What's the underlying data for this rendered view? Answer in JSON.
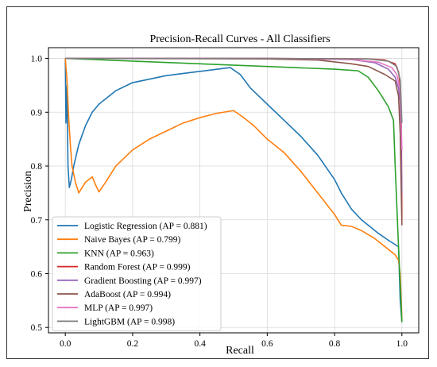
{
  "chart_data": {
    "type": "line",
    "title": "Precision-Recall Curves - All Classifiers",
    "xlabel": "Recall",
    "ylabel": "Precision",
    "xlim": [
      -0.05,
      1.05
    ],
    "ylim": [
      0.49,
      1.02
    ],
    "grid": true,
    "legend_position": "bottom-left",
    "x_ticks": [
      0.0,
      0.2,
      0.4,
      0.6,
      0.8,
      1.0
    ],
    "x_tick_labels": [
      "0.0",
      "0.2",
      "0.4",
      "0.6",
      "0.8",
      "1.0"
    ],
    "y_ticks": [
      0.5,
      0.6,
      0.7,
      0.8,
      0.9,
      1.0
    ],
    "y_tick_labels": [
      "0.5",
      "0.6",
      "0.7",
      "0.8",
      "0.9",
      "1.0"
    ],
    "series": [
      {
        "name": "Logistic Regression (AP = 0.881)",
        "color": "#1f77b4",
        "points": [
          [
            0,
            1.0
          ],
          [
            0.002,
            0.88
          ],
          [
            0.005,
            0.95
          ],
          [
            0.008,
            0.8
          ],
          [
            0.012,
            0.76
          ],
          [
            0.018,
            0.775
          ],
          [
            0.025,
            0.8
          ],
          [
            0.04,
            0.84
          ],
          [
            0.06,
            0.875
          ],
          [
            0.08,
            0.9
          ],
          [
            0.1,
            0.915
          ],
          [
            0.15,
            0.94
          ],
          [
            0.2,
            0.955
          ],
          [
            0.3,
            0.968
          ],
          [
            0.4,
            0.976
          ],
          [
            0.49,
            0.983
          ],
          [
            0.52,
            0.97
          ],
          [
            0.55,
            0.945
          ],
          [
            0.6,
            0.915
          ],
          [
            0.65,
            0.885
          ],
          [
            0.7,
            0.855
          ],
          [
            0.75,
            0.82
          ],
          [
            0.8,
            0.775
          ],
          [
            0.82,
            0.75
          ],
          [
            0.85,
            0.72
          ],
          [
            0.88,
            0.7
          ],
          [
            0.9,
            0.69
          ],
          [
            0.93,
            0.675
          ],
          [
            0.96,
            0.662
          ],
          [
            0.99,
            0.65
          ],
          [
            0.995,
            0.55
          ],
          [
            1.0,
            0.51
          ]
        ]
      },
      {
        "name": "Naive Bayes (AP = 0.799)",
        "color": "#ff7f0e",
        "points": [
          [
            0,
            1.0
          ],
          [
            0.005,
            0.96
          ],
          [
            0.01,
            0.89
          ],
          [
            0.015,
            0.84
          ],
          [
            0.02,
            0.8
          ],
          [
            0.03,
            0.77
          ],
          [
            0.04,
            0.75
          ],
          [
            0.05,
            0.76
          ],
          [
            0.06,
            0.77
          ],
          [
            0.07,
            0.775
          ],
          [
            0.08,
            0.78
          ],
          [
            0.09,
            0.765
          ],
          [
            0.1,
            0.752
          ],
          [
            0.12,
            0.77
          ],
          [
            0.15,
            0.8
          ],
          [
            0.2,
            0.83
          ],
          [
            0.25,
            0.85
          ],
          [
            0.3,
            0.865
          ],
          [
            0.35,
            0.88
          ],
          [
            0.4,
            0.89
          ],
          [
            0.45,
            0.898
          ],
          [
            0.5,
            0.903
          ],
          [
            0.53,
            0.89
          ],
          [
            0.56,
            0.875
          ],
          [
            0.6,
            0.85
          ],
          [
            0.65,
            0.825
          ],
          [
            0.7,
            0.79
          ],
          [
            0.75,
            0.75
          ],
          [
            0.8,
            0.71
          ],
          [
            0.82,
            0.69
          ],
          [
            0.85,
            0.688
          ],
          [
            0.88,
            0.68
          ],
          [
            0.92,
            0.665
          ],
          [
            0.95,
            0.65
          ],
          [
            0.98,
            0.635
          ],
          [
            0.99,
            0.625
          ],
          [
            0.995,
            0.6
          ],
          [
            1.0,
            0.515
          ]
        ]
      },
      {
        "name": "KNN (AP = 0.963)",
        "color": "#2ca02c",
        "points": [
          [
            0,
            1.0
          ],
          [
            0.2,
            0.995
          ],
          [
            0.4,
            0.99
          ],
          [
            0.6,
            0.985
          ],
          [
            0.8,
            0.98
          ],
          [
            0.87,
            0.977
          ],
          [
            0.9,
            0.965
          ],
          [
            0.93,
            0.94
          ],
          [
            0.96,
            0.91
          ],
          [
            0.975,
            0.885
          ],
          [
            0.98,
            0.8
          ],
          [
            0.99,
            0.65
          ],
          [
            1.0,
            0.51
          ]
        ]
      },
      {
        "name": "Random Forest (AP = 0.999)",
        "color": "#d62728",
        "points": [
          [
            0,
            1.0
          ],
          [
            0.6,
            1.0
          ],
          [
            0.9,
            0.999
          ],
          [
            0.95,
            0.997
          ],
          [
            0.98,
            0.99
          ],
          [
            0.99,
            0.975
          ],
          [
            0.995,
            0.95
          ],
          [
            0.998,
            0.9
          ],
          [
            1.0,
            0.7
          ]
        ]
      },
      {
        "name": "Gradient Boosting (AP = 0.997)",
        "color": "#9467bd",
        "points": [
          [
            0,
            1.0
          ],
          [
            0.6,
            1.0
          ],
          [
            0.85,
            0.998
          ],
          [
            0.92,
            0.992
          ],
          [
            0.96,
            0.98
          ],
          [
            0.98,
            0.965
          ],
          [
            0.99,
            0.945
          ],
          [
            0.995,
            0.92
          ],
          [
            1.0,
            0.75
          ]
        ]
      },
      {
        "name": "AdaBoost (AP = 0.994)",
        "color": "#8c564b",
        "points": [
          [
            0,
            1.0
          ],
          [
            0.6,
            0.999
          ],
          [
            0.75,
            0.997
          ],
          [
            0.85,
            0.99
          ],
          [
            0.9,
            0.985
          ],
          [
            0.95,
            0.97
          ],
          [
            0.98,
            0.958
          ],
          [
            0.99,
            0.93
          ],
          [
            0.995,
            0.86
          ],
          [
            1.0,
            0.69
          ]
        ]
      },
      {
        "name": "MLP (AP = 0.997)",
        "color": "#e377c2",
        "points": [
          [
            0,
            1.0
          ],
          [
            0.6,
            1.0
          ],
          [
            0.85,
            0.998
          ],
          [
            0.93,
            0.993
          ],
          [
            0.97,
            0.983
          ],
          [
            0.985,
            0.97
          ],
          [
            0.995,
            0.94
          ],
          [
            1.0,
            0.83
          ]
        ]
      },
      {
        "name": "LightGBM (AP = 0.998)",
        "color": "#7f7f7f",
        "points": [
          [
            0,
            1.0
          ],
          [
            0.6,
            1.0
          ],
          [
            0.9,
            0.999
          ],
          [
            0.96,
            0.995
          ],
          [
            0.985,
            0.985
          ],
          [
            0.995,
            0.96
          ],
          [
            1.0,
            0.88
          ]
        ]
      }
    ]
  }
}
